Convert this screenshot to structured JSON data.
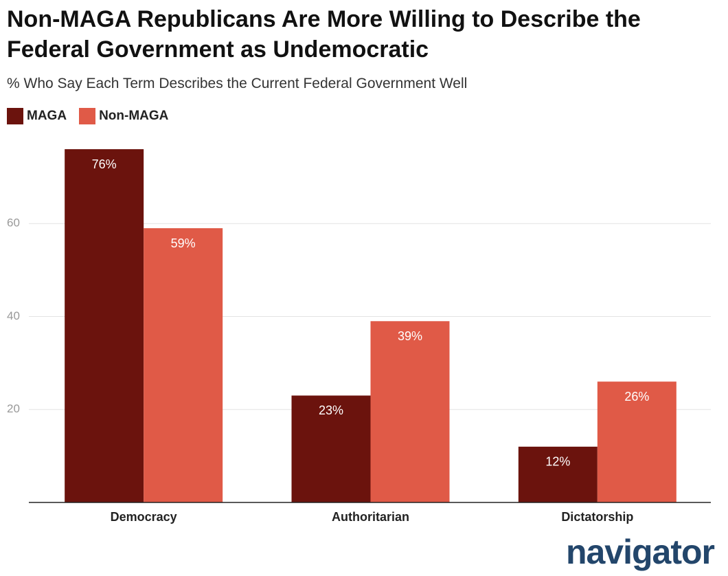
{
  "chart_data": {
    "type": "bar",
    "title": "Non-MAGA Republicans Are More Willing to Describe the Federal Government as Undemocratic",
    "subtitle": "% Who Say Each Term Describes the Current Federal Government Well",
    "categories": [
      "Democracy",
      "Authoritarian",
      "Dictatorship"
    ],
    "series": [
      {
        "name": "MAGA",
        "color": "#6b130d",
        "values": [
          76,
          23,
          12
        ],
        "value_labels": [
          "76%",
          "23%",
          "12%"
        ]
      },
      {
        "name": "Non-MAGA",
        "color": "#e05a47",
        "values": [
          59,
          39,
          26
        ],
        "value_labels": [
          "59%",
          "39%",
          "26%"
        ]
      }
    ],
    "ylim": [
      0,
      80
    ],
    "yticks": [
      20,
      40,
      60
    ],
    "grid": true,
    "legend": "top-left",
    "logo": "navigator"
  }
}
